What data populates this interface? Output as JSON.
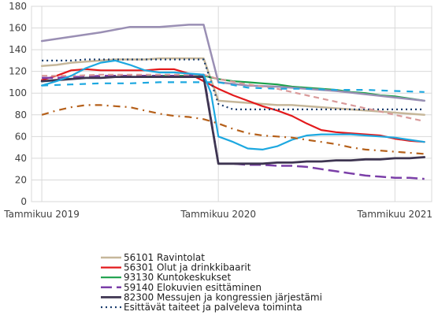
{
  "chart_data": {
    "type": "line",
    "x_ticks": [
      {
        "label": "Tammikuu 2019",
        "x": 0
      },
      {
        "label": "Tammikuu 2020",
        "x": 12
      },
      {
        "label": "Tammikuu 2021",
        "x": 24
      }
    ],
    "y_ticks": [
      0,
      20,
      40,
      60,
      80,
      100,
      120,
      140,
      160,
      180
    ],
    "ylim": [
      0,
      180
    ],
    "xlim": [
      -0.7,
      26.5
    ],
    "grid": true,
    "legend_position": "bottom",
    "series": [
      {
        "name": "56101 Ravintolat",
        "color": "#c6b79a",
        "dash": "",
        "width": 2.5,
        "x": [
          0,
          1,
          2,
          3,
          4,
          5,
          6,
          7,
          8,
          9,
          10,
          11,
          12,
          13,
          14,
          15,
          16,
          17,
          18,
          19,
          20,
          21,
          22,
          23,
          24,
          25,
          26
        ],
        "y": [
          125,
          126,
          128,
          129,
          130,
          131,
          131,
          131,
          132,
          132,
          132,
          132,
          93,
          92,
          91,
          90,
          89,
          89,
          88,
          87,
          86,
          85,
          84,
          83,
          82,
          81,
          80
        ]
      },
      {
        "name": "56301 Olut ja drinkkibaarit",
        "color": "#e31a1c",
        "dash": "",
        "width": 2.2,
        "x": [
          0,
          1,
          2,
          3,
          4,
          5,
          6,
          7,
          8,
          9,
          10,
          11,
          12,
          13,
          14,
          15,
          16,
          17,
          18,
          19,
          20,
          21,
          22,
          23,
          24,
          25,
          26
        ],
        "y": [
          112,
          116,
          121,
          122,
          121,
          121,
          121,
          121,
          122,
          122,
          118,
          111,
          104,
          98,
          93,
          88,
          84,
          79,
          72,
          66,
          64,
          63,
          62,
          61,
          58,
          56,
          55
        ]
      },
      {
        "name": "93130 Kuntokeskukset",
        "color": "#1ba04a",
        "dash": "",
        "width": 2.2,
        "x": [
          0,
          1,
          2,
          3,
          4,
          5,
          6,
          7,
          8,
          9,
          10,
          11,
          12,
          13,
          14,
          15,
          16,
          17,
          18,
          19,
          20,
          21,
          22,
          23,
          24,
          25,
          26
        ],
        "y": [
          111,
          112,
          113,
          114,
          114,
          115,
          115,
          115,
          116,
          116,
          116,
          116,
          113,
          111,
          110,
          109,
          108,
          106,
          105,
          104,
          103,
          101,
          100,
          98,
          97,
          95,
          93
        ]
      },
      {
        "name": "59140 Elokuvien esittäminen",
        "color": "#7b3fa8",
        "dash": "14 6",
        "width": 2.5,
        "x": [
          0,
          1,
          2,
          3,
          4,
          5,
          6,
          7,
          8,
          9,
          10,
          11,
          12,
          13,
          14,
          15,
          16,
          17,
          18,
          19,
          20,
          21,
          22,
          23,
          24,
          25,
          26
        ],
        "y": [
          114,
          114,
          115,
          115,
          116,
          116,
          116,
          116,
          116,
          116,
          116,
          117,
          35,
          35,
          34,
          34,
          33,
          33,
          32,
          30,
          28,
          26,
          24,
          23,
          22,
          22,
          21
        ]
      },
      {
        "name": "82300 Messujen ja kongressien järjestämi",
        "color": "#3e3551",
        "dash": "",
        "width": 2.8,
        "x": [
          0,
          1,
          2,
          3,
          4,
          5,
          6,
          7,
          8,
          9,
          10,
          11,
          12,
          13,
          14,
          15,
          16,
          17,
          18,
          19,
          20,
          21,
          22,
          23,
          24,
          25,
          26
        ],
        "y": [
          111,
          112,
          113,
          114,
          114,
          115,
          115,
          115,
          115,
          115,
          115,
          115,
          35,
          35,
          35,
          35,
          36,
          36,
          37,
          37,
          38,
          38,
          39,
          39,
          40,
          40,
          41
        ]
      },
      {
        "name": "Esittävät taiteet ja palveleva toiminta",
        "color": "#1a3d6e",
        "dash": "2 4",
        "width": 2.2,
        "x": [
          0,
          1,
          2,
          3,
          4,
          5,
          6,
          7,
          8,
          9,
          10,
          11,
          12,
          13,
          14,
          15,
          16,
          17,
          18,
          19,
          20,
          21,
          22,
          23,
          24,
          25,
          26
        ],
        "y": [
          130,
          130,
          130,
          131,
          131,
          131,
          131,
          131,
          131,
          131,
          131,
          131,
          90,
          85,
          85,
          85,
          85,
          85,
          85,
          85,
          85,
          85,
          85,
          85,
          85,
          85,
          85
        ]
      },
      {
        "name": "",
        "color": "#9a8fb4",
        "dash": "",
        "width": 2.5,
        "x": [
          0,
          2,
          4,
          6,
          8,
          10,
          11,
          12,
          14,
          16,
          18,
          20,
          22,
          24,
          26
        ],
        "y": [
          148,
          152,
          156,
          161,
          161,
          163,
          163,
          110,
          107,
          106,
          104,
          102,
          99,
          96,
          93
        ]
      },
      {
        "name": "",
        "color": "#d99a9a",
        "dash": "7 5",
        "width": 2.2,
        "x": [
          0,
          2,
          4,
          6,
          8,
          10,
          11,
          12,
          14,
          16,
          18,
          20,
          22,
          24,
          26
        ],
        "y": [
          116,
          116,
          117,
          117,
          117,
          117,
          117,
          113,
          108,
          104,
          98,
          92,
          86,
          80,
          74
        ]
      },
      {
        "name": "",
        "color": "#1da8e0",
        "dash": "",
        "width": 2.2,
        "x": [
          0,
          1,
          2,
          3,
          4,
          5,
          6,
          7,
          8,
          9,
          10,
          11,
          11.5,
          12,
          13,
          14,
          15,
          16,
          17,
          18,
          19,
          20,
          21,
          22,
          23,
          24,
          25,
          26
        ],
        "y": [
          107,
          111,
          116,
          123,
          128,
          130,
          126,
          121,
          119,
          119,
          118,
          117,
          100,
          60,
          55,
          49,
          48,
          51,
          57,
          61,
          62,
          62,
          62,
          61,
          60,
          59,
          57,
          55
        ]
      },
      {
        "name": "",
        "color": "#1da8e0",
        "dash": "8 8",
        "width": 2.2,
        "x": [
          0,
          2,
          4,
          6,
          8,
          10,
          12,
          14,
          16,
          18,
          20,
          22,
          24,
          26
        ],
        "y": [
          107,
          108,
          109,
          109,
          110,
          110,
          110,
          105,
          104,
          104,
          103,
          103,
          102,
          101
        ]
      },
      {
        "name": "",
        "color": "#b5601a",
        "dash": "9 6 2 6",
        "width": 2.2,
        "x": [
          0,
          1,
          2,
          3,
          4,
          5,
          6,
          7,
          8,
          9,
          10,
          11,
          12,
          13,
          14,
          15,
          16,
          17,
          18,
          19,
          20,
          21,
          22,
          23,
          24,
          25,
          26
        ],
        "y": [
          80,
          84,
          87,
          89,
          89,
          88,
          87,
          84,
          81,
          79,
          78,
          76,
          72,
          67,
          63,
          61,
          60,
          59,
          57,
          55,
          53,
          50,
          48,
          47,
          46,
          45,
          44
        ]
      }
    ]
  }
}
